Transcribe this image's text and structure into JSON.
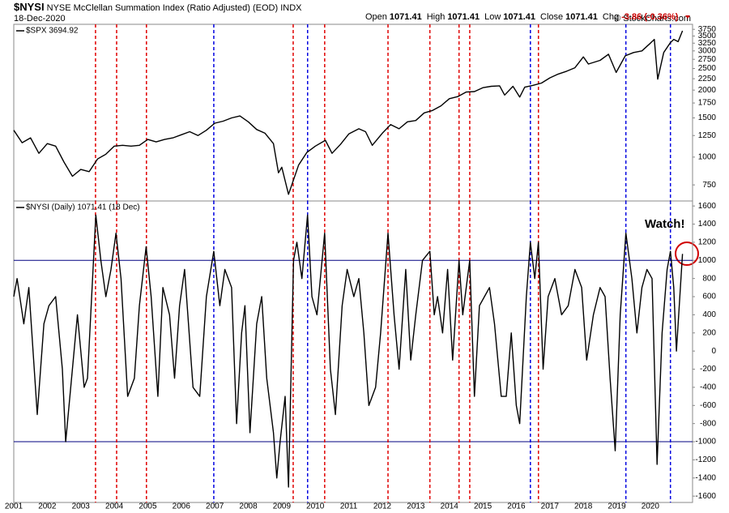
{
  "header": {
    "symbol": "$NYSI",
    "title": "NYSE McClellan Summation Index (Ratio Adjusted) (EOD) INDX",
    "date": "18-Dec-2020",
    "quote": [
      {
        "label": "Open",
        "value": "1071.41"
      },
      {
        "label": "High",
        "value": "1071.41"
      },
      {
        "label": "Low",
        "value": "1071.41"
      },
      {
        "label": "Close",
        "value": "1071.41"
      },
      {
        "label": "Chg",
        "value": "-3.86 (-0.36%)"
      }
    ],
    "watermark": "© StockCharts.com"
  },
  "event_lines": [
    {
      "color": "#e00000",
      "x": [
        2003.44,
        2004.07,
        2004.96,
        2009.34,
        2010.28,
        2012.17,
        2013.42,
        2014.29,
        2014.61,
        2016.66
      ]
    },
    {
      "color": "#0000e0",
      "x": [
        2006.97,
        2009.77,
        2016.42,
        2019.27,
        2020.6
      ]
    }
  ],
  "chart_data": [
    {
      "type": "line",
      "legend": "$SPX 3694.92",
      "color": "#000000",
      "log": true,
      "xlim": [
        2001,
        2021.26
      ],
      "ylim": [
        635,
        3950
      ],
      "yticks": [
        750,
        1000,
        1250,
        1500,
        1750,
        2000,
        2250,
        2500,
        2750,
        3000,
        3250,
        3500,
        3750
      ],
      "x": [
        2001.0,
        2001.25,
        2001.5,
        2001.75,
        2002.0,
        2002.25,
        2002.5,
        2002.75,
        2003.0,
        2003.25,
        2003.5,
        2003.75,
        2004.0,
        2004.25,
        2004.5,
        2004.75,
        2005.0,
        2005.25,
        2005.5,
        2005.75,
        2006.0,
        2006.25,
        2006.5,
        2006.75,
        2007.0,
        2007.25,
        2007.5,
        2007.75,
        2008.0,
        2008.25,
        2008.5,
        2008.75,
        2008.9,
        2009.0,
        2009.2,
        2009.5,
        2009.75,
        2010.0,
        2010.3,
        2010.5,
        2010.75,
        2011.0,
        2011.3,
        2011.5,
        2011.7,
        2012.0,
        2012.25,
        2012.5,
        2012.75,
        2013.0,
        2013.25,
        2013.5,
        2013.75,
        2014.0,
        2014.25,
        2014.5,
        2014.75,
        2015.0,
        2015.25,
        2015.5,
        2015.65,
        2015.9,
        2016.1,
        2016.25,
        2016.5,
        2016.75,
        2017.0,
        2017.25,
        2017.5,
        2017.75,
        2018.0,
        2018.15,
        2018.5,
        2018.75,
        2018.98,
        2019.25,
        2019.5,
        2019.75,
        2020.0,
        2020.12,
        2020.22,
        2020.4,
        2020.6,
        2020.7,
        2020.83,
        2020.96
      ],
      "values": [
        1320,
        1160,
        1220,
        1040,
        1150,
        1120,
        950,
        820,
        880,
        860,
        980,
        1030,
        1120,
        1130,
        1120,
        1130,
        1200,
        1170,
        1200,
        1220,
        1260,
        1300,
        1250,
        1320,
        1420,
        1450,
        1500,
        1530,
        1440,
        1330,
        1280,
        1150,
        850,
        900,
        680,
        920,
        1050,
        1120,
        1190,
        1040,
        1140,
        1270,
        1340,
        1300,
        1130,
        1280,
        1400,
        1340,
        1440,
        1460,
        1580,
        1620,
        1700,
        1830,
        1870,
        1960,
        1970,
        2050,
        2080,
        2090,
        1900,
        2080,
        1860,
        2060,
        2100,
        2150,
        2270,
        2360,
        2430,
        2520,
        2820,
        2620,
        2720,
        2900,
        2400,
        2850,
        2950,
        3000,
        3250,
        3380,
        2240,
        2950,
        3270,
        3380,
        3300,
        3694.92
      ]
    },
    {
      "type": "line",
      "legend": "$NYSI (Daily) 1071.41 (18 Dec)",
      "color": "#000000",
      "annotation": "Watch!",
      "xlim": [
        2001,
        2021.26
      ],
      "ylim": [
        -1670,
        1655
      ],
      "xticks": [
        2001,
        2002,
        2003,
        2004,
        2005,
        2006,
        2007,
        2008,
        2009,
        2010,
        2011,
        2012,
        2013,
        2014,
        2015,
        2016,
        2017,
        2018,
        2019,
        2020
      ],
      "yticks": [
        -1600,
        -1400,
        -1200,
        -1000,
        -800,
        -600,
        -400,
        -200,
        0,
        200,
        400,
        600,
        800,
        1000,
        1200,
        1400,
        1600
      ],
      "hlines": [
        1000,
        -1000
      ],
      "x": [
        2001.0,
        2001.1,
        2001.3,
        2001.45,
        2001.7,
        2001.9,
        2002.05,
        2002.25,
        2002.45,
        2002.55,
        2002.75,
        2002.9,
        2003.1,
        2003.2,
        2003.45,
        2003.6,
        2003.75,
        2003.9,
        2004.05,
        2004.2,
        2004.4,
        2004.6,
        2004.75,
        2004.95,
        2005.1,
        2005.3,
        2005.45,
        2005.65,
        2005.8,
        2005.95,
        2006.1,
        2006.35,
        2006.55,
        2006.75,
        2006.97,
        2007.15,
        2007.3,
        2007.5,
        2007.65,
        2007.8,
        2007.9,
        2008.05,
        2008.25,
        2008.4,
        2008.55,
        2008.75,
        2008.85,
        2008.95,
        2009.1,
        2009.2,
        2009.35,
        2009.45,
        2009.6,
        2009.77,
        2009.9,
        2010.05,
        2010.28,
        2010.45,
        2010.6,
        2010.8,
        2010.95,
        2011.15,
        2011.3,
        2011.45,
        2011.6,
        2011.8,
        2011.95,
        2012.17,
        2012.35,
        2012.5,
        2012.7,
        2012.85,
        2013.0,
        2013.2,
        2013.42,
        2013.55,
        2013.65,
        2013.8,
        2013.95,
        2014.1,
        2014.29,
        2014.4,
        2014.61,
        2014.75,
        2014.9,
        2015.05,
        2015.2,
        2015.35,
        2015.55,
        2015.7,
        2015.85,
        2016.0,
        2016.1,
        2016.3,
        2016.42,
        2016.55,
        2016.66,
        2016.8,
        2016.95,
        2017.15,
        2017.35,
        2017.55,
        2017.75,
        2017.95,
        2018.1,
        2018.3,
        2018.5,
        2018.65,
        2018.8,
        2018.95,
        2019.1,
        2019.27,
        2019.45,
        2019.6,
        2019.75,
        2019.9,
        2020.05,
        2020.2,
        2020.35,
        2020.5,
        2020.6,
        2020.7,
        2020.78,
        2020.88,
        2020.96
      ],
      "values": [
        600,
        800,
        300,
        700,
        -700,
        300,
        500,
        600,
        -200,
        -1000,
        -200,
        400,
        -400,
        -300,
        1500,
        1000,
        600,
        900,
        1300,
        800,
        -500,
        -300,
        500,
        1150,
        600,
        -500,
        700,
        400,
        -300,
        500,
        900,
        -400,
        -500,
        600,
        1100,
        500,
        900,
        700,
        -800,
        200,
        500,
        -900,
        300,
        600,
        -300,
        -900,
        -1400,
        -1000,
        -500,
        -1500,
        1000,
        1200,
        800,
        1500,
        600,
        400,
        1300,
        -200,
        -700,
        500,
        900,
        600,
        800,
        200,
        -600,
        -400,
        200,
        1300,
        400,
        -200,
        900,
        -100,
        400,
        1000,
        1100,
        400,
        600,
        200,
        900,
        -100,
        1000,
        400,
        1000,
        -500,
        500,
        600,
        700,
        300,
        -500,
        -500,
        200,
        -600,
        -800,
        600,
        1200,
        800,
        1200,
        -200,
        600,
        800,
        400,
        500,
        900,
        700,
        -100,
        400,
        700,
        600,
        -300,
        -1100,
        400,
        1300,
        800,
        200,
        700,
        900,
        800,
        -1250,
        200,
        900,
        1100,
        700,
        0,
        600,
        1071.41
      ]
    }
  ]
}
